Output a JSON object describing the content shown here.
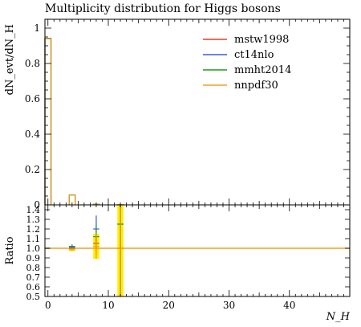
{
  "chart_data": {
    "type": "step",
    "title": "Multiplicity distribution for Higgs bosons",
    "xlabel": "N_H",
    "ylabel": "dN_evt/dN_H",
    "ratio_ylabel": "Ratio",
    "xlim": [
      -0.5,
      50
    ],
    "ylim": [
      0,
      1.05
    ],
    "ratio_ylim": [
      0.5,
      1.45
    ],
    "x_ticks": [
      0,
      10,
      20,
      30,
      40
    ],
    "y_ticks": [
      0,
      0.2,
      0.4,
      0.6,
      0.8,
      1
    ],
    "ratio_ticks": [
      0.5,
      0.6,
      0.7,
      0.8,
      0.9,
      1.0,
      1.1,
      1.2,
      1.3,
      1.4
    ],
    "legend_position": "top-right",
    "bins": [
      [
        -0.5,
        0.5
      ],
      [
        3.5,
        4.5
      ],
      [
        7.5,
        8.5
      ],
      [
        11.5,
        12.5
      ]
    ],
    "series": [
      {
        "name": "mstw1998",
        "color": "#e8401c",
        "values": [
          0.942,
          0.055,
          0.0025,
          5e-05
        ],
        "ratio": [
          1.0,
          1.0,
          1.05,
          1.0
        ],
        "ratio_err": [
          0,
          0.015,
          0.1,
          0.6
        ]
      },
      {
        "name": "ct14nlo",
        "color": "#3b5cdb",
        "values": [
          0.94,
          0.056,
          0.0031,
          6e-05
        ],
        "ratio": [
          1.0,
          1.02,
          1.2,
          1.25
        ],
        "ratio_err": [
          0,
          0.02,
          0.14,
          0.8
        ]
      },
      {
        "name": "mmht2014",
        "color": "#1f9b1f",
        "values": [
          0.941,
          0.056,
          0.0028,
          6e-05
        ],
        "ratio": [
          1.0,
          1.01,
          1.12,
          1.25
        ],
        "ratio_err": [
          0,
          0.02,
          0.12,
          0.8
        ]
      },
      {
        "name": "nnpdf30",
        "color": "#f0a020",
        "values": [
          0.94,
          0.055,
          0.0026,
          5e-05
        ],
        "ratio": [
          1.0,
          0.985,
          1.02,
          1.0
        ],
        "ratio_err": [
          0,
          0.015,
          0.13,
          0.8
        ]
      }
    ],
    "ratio_band_color": "#ffee00"
  }
}
